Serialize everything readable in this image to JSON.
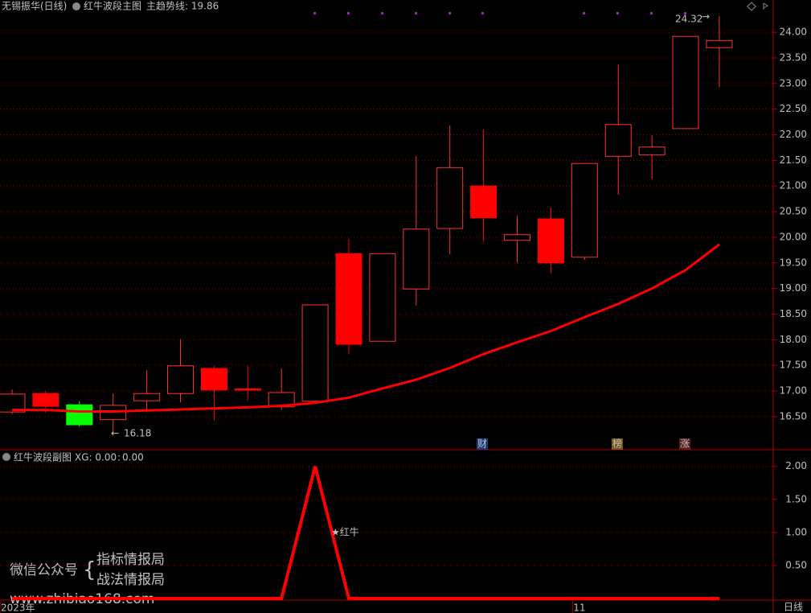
{
  "header": {
    "stock": "无锡振华(日线)"
  },
  "watermark": {
    "label": "微信公众号",
    "lines": [
      "指标情报局",
      "战法情报局"
    ],
    "url": "www.zhibiao168.com"
  },
  "chart_data": [
    {
      "type": "candlestick",
      "title": "红牛波段主图",
      "legend": "主趋势线: 19.86",
      "candles": {
        "open": [
          16.59,
          16.95,
          16.73,
          16.44,
          16.81,
          16.95,
          17.44,
          17.04,
          16.69,
          16.8,
          19.68,
          17.97,
          18.99,
          20.17,
          21.0,
          19.94,
          20.36,
          19.61,
          21.58,
          21.61,
          22.12,
          23.7
        ],
        "high": [
          17.03,
          17.0,
          16.8,
          16.95,
          17.41,
          18.01,
          17.49,
          17.49,
          17.44,
          18.68,
          19.97,
          19.68,
          21.58,
          22.18,
          22.1,
          20.42,
          20.58,
          21.44,
          23.37,
          21.99,
          23.92,
          24.32
        ],
        "low": [
          16.55,
          16.58,
          16.3,
          16.18,
          16.59,
          16.78,
          16.42,
          16.81,
          16.63,
          16.8,
          17.72,
          17.97,
          18.67,
          19.67,
          19.92,
          19.5,
          19.29,
          19.56,
          20.83,
          21.14,
          22.12,
          22.93
        ],
        "close": [
          16.94,
          16.7,
          16.34,
          16.72,
          16.95,
          17.49,
          17.02,
          17.03,
          16.97,
          18.68,
          17.91,
          19.68,
          20.16,
          21.36,
          20.38,
          20.05,
          19.5,
          21.44,
          22.2,
          21.76,
          23.92,
          23.84
        ],
        "colors": [
          "#ff3232",
          "#ff0000",
          "#00ff00",
          "#ff3232",
          "#ff3232",
          "#ff3232",
          "#ff0000",
          "#ff0000",
          "#ff3232",
          "#ff3232",
          "#ff0000",
          "#ff3232",
          "#ff3232",
          "#ff3232",
          "#ff0000",
          "#ff3232",
          "#ff0000",
          "#ff3232",
          "#ff3232",
          "#ff3232",
          "#ff3232",
          "#ff3232"
        ]
      },
      "series": [
        {
          "name": "主趋势线",
          "color": "#ff0000",
          "values": [
            16.63,
            16.63,
            16.6,
            16.6,
            16.62,
            16.64,
            16.66,
            16.68,
            16.71,
            16.77,
            16.87,
            17.05,
            17.22,
            17.45,
            17.72,
            17.95,
            18.17,
            18.44,
            18.7,
            19.0,
            19.36,
            19.86
          ]
        }
      ],
      "annotations": [
        "财",
        "榜",
        "涨"
      ],
      "ylim": [
        15.87,
        24.63
      ],
      "yticks": [
        {
          "value": 16.5,
          "label": "16.50"
        },
        {
          "value": 17,
          "label": "17.00"
        },
        {
          "value": 17.5,
          "label": "17.50"
        },
        {
          "value": 18,
          "label": "18.00"
        },
        {
          "value": 18.5,
          "label": "18.50"
        },
        {
          "value": 19,
          "label": "19.00"
        },
        {
          "value": 19.5,
          "label": "19.50"
        },
        {
          "value": 20,
          "label": "20.00"
        },
        {
          "value": 20.5,
          "label": "20.50"
        },
        {
          "value": 21,
          "label": "21.00"
        },
        {
          "value": 21.5,
          "label": "21.50"
        },
        {
          "value": 22,
          "label": "22.00"
        },
        {
          "value": 22.5,
          "label": "22.50"
        },
        {
          "value": 23,
          "label": "23.00"
        },
        {
          "value": 23.5,
          "label": "23.50"
        },
        {
          "value": 24,
          "label": "24.00"
        }
      ],
      "grid": true
    },
    {
      "type": "line",
      "title": "红牛波段副图",
      "legend": [
        "XG: 0.00",
        "0.00"
      ],
      "categories": [
        "2023年",
        null,
        null,
        null,
        null,
        null,
        null,
        null,
        null,
        null,
        null,
        null,
        null,
        null,
        null,
        null,
        null,
        "11",
        null,
        null,
        null,
        null
      ],
      "series": [
        {
          "color": "#ff0000",
          "values": [
            0,
            0,
            0,
            0,
            0,
            0,
            0,
            0,
            0,
            2,
            0,
            0,
            0,
            0,
            0,
            0,
            0,
            0,
            0,
            0,
            0,
            0
          ]
        }
      ],
      "annotation": "★红牛",
      "period": "日线",
      "ylim": [
        0,
        2.24
      ],
      "yticks": [
        {
          "value": 0.5,
          "label": "0.50"
        },
        {
          "value": 1,
          "label": "1.00"
        },
        {
          "value": 1.5,
          "label": "1.50"
        },
        {
          "value": 2,
          "label": "2.00"
        }
      ],
      "grid": true
    }
  ]
}
